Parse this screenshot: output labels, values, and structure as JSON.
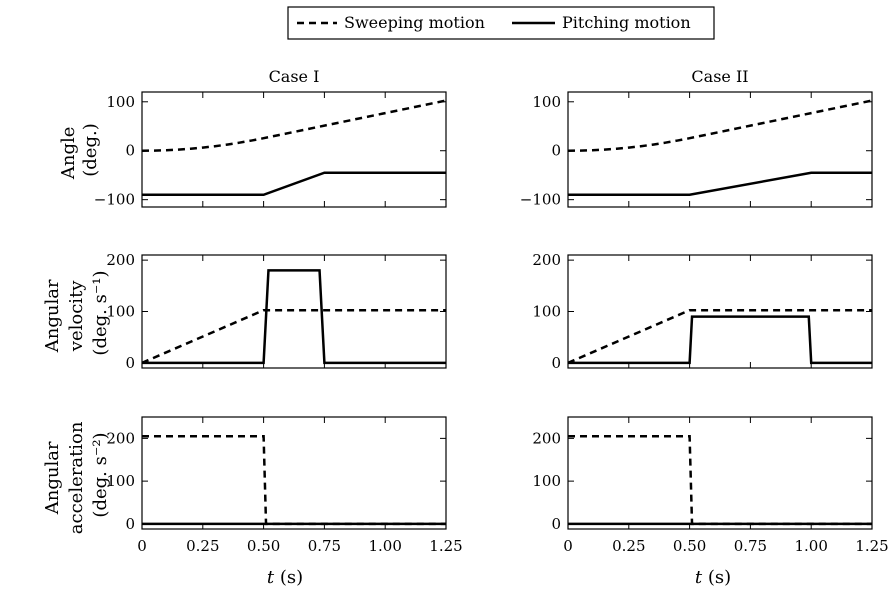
{
  "legend": {
    "placement": "top-center",
    "entries": [
      {
        "label": "Sweeping motion",
        "style": "dashed"
      },
      {
        "label": "Pitching motion",
        "style": "solid"
      }
    ]
  },
  "row_labels": [
    {
      "lines": [
        "Angle",
        "(deg.)"
      ]
    },
    {
      "lines": [
        "Angular",
        "velocity",
        "(deg. s⁻¹)"
      ]
    },
    {
      "lines": [
        "Angular",
        "acceleration",
        "(deg. s⁻²)"
      ]
    }
  ],
  "x_axis_label": {
    "var": "t",
    "unit": " (s)"
  },
  "x_tick_labels": [
    "0",
    "0.25",
    "0.50",
    "0.75",
    "1.00",
    "1.25"
  ],
  "chart_data": [
    {
      "type": "line",
      "title": "Case I",
      "row": 0,
      "col": 0,
      "xlim": [
        0,
        1.25
      ],
      "ylim": [
        -115,
        120
      ],
      "yticks": [
        -100,
        0,
        100
      ],
      "ytick_labels": [
        "−100",
        "0",
        "100"
      ],
      "xticks": [
        0,
        0.25,
        0.5,
        0.75,
        1.0,
        1.25
      ],
      "series": [
        {
          "name": "Sweeping motion",
          "style": "dashed",
          "x": [
            0,
            0.05,
            0.1,
            0.15,
            0.2,
            0.25,
            0.3,
            0.35,
            0.4,
            0.45,
            0.5,
            0.75,
            1.0,
            1.25
          ],
          "y": [
            0,
            0.26,
            1.03,
            2.31,
            4.1,
            6.41,
            9.23,
            12.56,
            16.4,
            20.76,
            25.6,
            51.25,
            76.9,
            102.5
          ]
        },
        {
          "name": "Pitching motion",
          "style": "solid",
          "x": [
            0,
            0.5,
            0.75,
            1.25
          ],
          "y": [
            -90,
            -90,
            -45,
            -45
          ]
        }
      ]
    },
    {
      "type": "line",
      "title": "Case II",
      "row": 0,
      "col": 1,
      "xlim": [
        0,
        1.25
      ],
      "ylim": [
        -115,
        120
      ],
      "yticks": [
        -100,
        0,
        100
      ],
      "ytick_labels": [
        "−100",
        "0",
        "100"
      ],
      "xticks": [
        0,
        0.25,
        0.5,
        0.75,
        1.0,
        1.25
      ],
      "series": [
        {
          "name": "Sweeping motion",
          "style": "dashed",
          "x": [
            0,
            0.05,
            0.1,
            0.15,
            0.2,
            0.25,
            0.3,
            0.35,
            0.4,
            0.45,
            0.5,
            0.75,
            1.0,
            1.25
          ],
          "y": [
            0,
            0.26,
            1.03,
            2.31,
            4.1,
            6.41,
            9.23,
            12.56,
            16.4,
            20.76,
            25.6,
            51.25,
            76.9,
            102.5
          ]
        },
        {
          "name": "Pitching motion",
          "style": "solid",
          "x": [
            0,
            0.5,
            1.0,
            1.25
          ],
          "y": [
            -90,
            -90,
            -45,
            -45
          ]
        }
      ]
    },
    {
      "type": "line",
      "title": "",
      "row": 1,
      "col": 0,
      "xlim": [
        0,
        1.25
      ],
      "ylim": [
        -10,
        210
      ],
      "yticks": [
        0,
        100,
        200
      ],
      "ytick_labels": [
        "0",
        "100",
        "200"
      ],
      "xticks": [
        0,
        0.25,
        0.5,
        0.75,
        1.0,
        1.25
      ],
      "series": [
        {
          "name": "Sweeping motion",
          "style": "dashed",
          "x": [
            0,
            0.5,
            1.25
          ],
          "y": [
            0,
            102.5,
            102.5
          ]
        },
        {
          "name": "Pitching motion",
          "style": "solid",
          "x": [
            0,
            0.5,
            0.52,
            0.73,
            0.75,
            1.25
          ],
          "y": [
            0,
            0,
            180,
            180,
            0,
            0
          ]
        }
      ]
    },
    {
      "type": "line",
      "title": "",
      "row": 1,
      "col": 1,
      "xlim": [
        0,
        1.25
      ],
      "ylim": [
        -10,
        210
      ],
      "yticks": [
        0,
        100,
        200
      ],
      "ytick_labels": [
        "0",
        "100",
        "200"
      ],
      "xticks": [
        0,
        0.25,
        0.5,
        0.75,
        1.0,
        1.25
      ],
      "series": [
        {
          "name": "Sweeping motion",
          "style": "dashed",
          "x": [
            0,
            0.5,
            1.25
          ],
          "y": [
            0,
            102.5,
            102.5
          ]
        },
        {
          "name": "Pitching motion",
          "style": "solid",
          "x": [
            0,
            0.5,
            0.51,
            0.99,
            1.0,
            1.25
          ],
          "y": [
            0,
            0,
            90,
            90,
            0,
            0
          ]
        }
      ]
    },
    {
      "type": "line",
      "title": "",
      "row": 2,
      "col": 0,
      "xlim": [
        0,
        1.25
      ],
      "ylim": [
        -12,
        250
      ],
      "yticks": [
        0,
        100,
        200
      ],
      "ytick_labels": [
        "0",
        "100",
        "200"
      ],
      "xticks": [
        0,
        0.25,
        0.5,
        0.75,
        1.0,
        1.25
      ],
      "series": [
        {
          "name": "Sweeping motion",
          "style": "dashed",
          "x": [
            0,
            0.5,
            0.51,
            1.25
          ],
          "y": [
            205,
            205,
            0,
            0
          ]
        },
        {
          "name": "Pitching motion",
          "style": "solid",
          "x": [
            0,
            1.25
          ],
          "y": [
            0,
            0
          ]
        }
      ]
    },
    {
      "type": "line",
      "title": "",
      "row": 2,
      "col": 1,
      "xlim": [
        0,
        1.25
      ],
      "ylim": [
        -12,
        250
      ],
      "yticks": [
        0,
        100,
        200
      ],
      "ytick_labels": [
        "0",
        "100",
        "200"
      ],
      "xticks": [
        0,
        0.25,
        0.5,
        0.75,
        1.0,
        1.25
      ],
      "series": [
        {
          "name": "Sweeping motion",
          "style": "dashed",
          "x": [
            0,
            0.5,
            0.51,
            1.25
          ],
          "y": [
            205,
            205,
            0,
            0
          ]
        },
        {
          "name": "Pitching motion",
          "style": "solid",
          "x": [
            0,
            1.25
          ],
          "y": [
            0,
            0
          ]
        }
      ]
    }
  ]
}
